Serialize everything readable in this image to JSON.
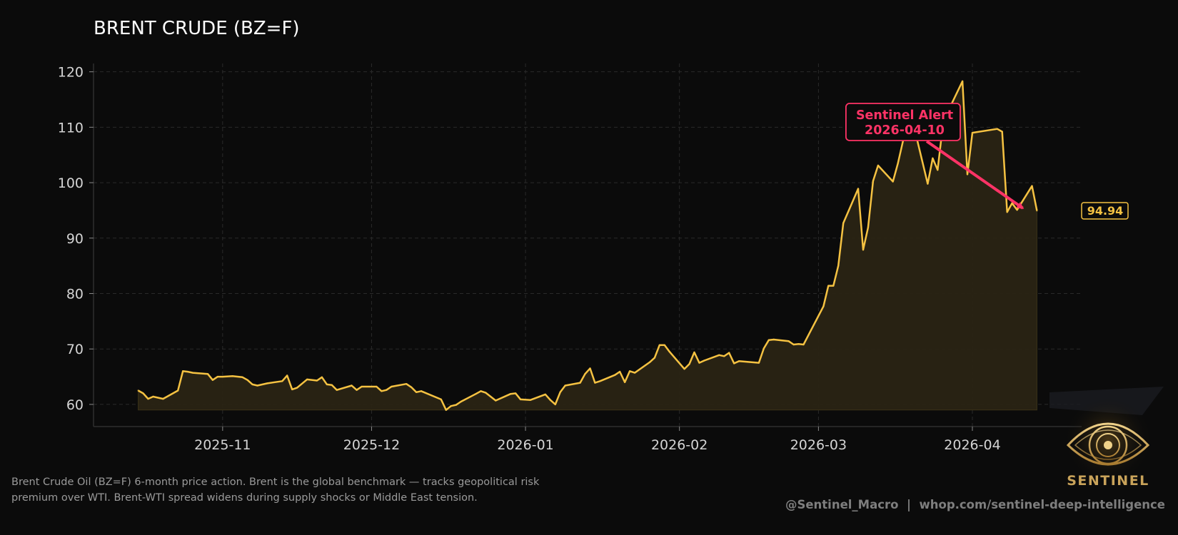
{
  "colors": {
    "background": "#0b0b0b",
    "line": "#f5c242",
    "fill": "#2a2414",
    "alert": "#ff3366",
    "grid": "#2a2a2a"
  },
  "chart_data": {
    "type": "area",
    "title": "BRENT CRUDE (BZ=F)",
    "xlabel": "",
    "ylabel": "",
    "ylim": [
      56,
      121.5
    ],
    "xlim": [
      "2025-10-06",
      "2026-04-23"
    ],
    "yticks": [
      60,
      70,
      80,
      90,
      100,
      110,
      120
    ],
    "xticks": [
      "2025-11",
      "2025-12",
      "2026-01",
      "2026-02",
      "2026-03",
      "2026-04"
    ],
    "grid": true,
    "fill_baseline": 59,
    "series": [
      {
        "x": [
          "2025-10-15",
          "2025-10-16",
          "2025-10-17",
          "2025-10-18",
          "2025-10-20",
          "2025-10-23",
          "2025-10-24",
          "2025-10-25",
          "2025-10-26",
          "2025-10-29",
          "2025-10-30",
          "2025-10-31",
          "2025-11-01",
          "2025-11-03",
          "2025-11-05",
          "2025-11-06",
          "2025-11-07",
          "2025-11-08",
          "2025-11-10",
          "2025-11-13",
          "2025-11-14",
          "2025-11-15",
          "2025-11-16",
          "2025-11-18",
          "2025-11-20",
          "2025-11-21",
          "2025-11-22",
          "2025-11-23",
          "2025-11-24",
          "2025-11-27",
          "2025-11-28",
          "2025-11-29",
          "2025-12-02",
          "2025-12-03",
          "2025-12-04",
          "2025-12-05",
          "2025-12-08",
          "2025-12-09",
          "2025-12-10",
          "2025-12-11",
          "2025-12-15",
          "2025-12-16",
          "2025-12-17",
          "2025-12-18",
          "2025-12-19",
          "2025-12-22",
          "2025-12-23",
          "2025-12-24",
          "2025-12-26",
          "2025-12-29",
          "2025-12-30",
          "2025-12-31",
          "2026-01-02",
          "2026-01-05",
          "2026-01-06",
          "2026-01-07",
          "2026-01-08",
          "2026-01-09",
          "2026-01-12",
          "2026-01-13",
          "2026-01-14",
          "2026-01-15",
          "2026-01-16",
          "2026-01-19",
          "2026-01-20",
          "2026-01-21",
          "2026-01-22",
          "2026-01-23",
          "2026-01-26",
          "2026-01-27",
          "2026-01-28",
          "2026-01-29",
          "2026-01-30",
          "2026-02-02",
          "2026-02-03",
          "2026-02-04",
          "2026-02-05",
          "2026-02-06",
          "2026-02-09",
          "2026-02-10",
          "2026-02-11",
          "2026-02-12",
          "2026-02-13",
          "2026-02-17",
          "2026-02-18",
          "2026-02-19",
          "2026-02-20",
          "2026-02-23",
          "2026-02-24",
          "2026-02-25",
          "2026-02-26",
          "2026-03-02",
          "2026-03-03",
          "2026-03-04",
          "2026-03-05",
          "2026-03-06",
          "2026-03-09",
          "2026-03-10",
          "2026-03-11",
          "2026-03-12",
          "2026-03-13",
          "2026-03-16",
          "2026-03-17",
          "2026-03-18",
          "2026-03-19",
          "2026-03-20",
          "2026-03-23",
          "2026-03-24",
          "2026-03-25",
          "2026-03-26",
          "2026-03-27",
          "2026-03-30",
          "2026-03-31",
          "2026-04-01",
          "2026-04-06",
          "2026-04-07",
          "2026-04-08",
          "2026-04-09",
          "2026-04-10",
          "2026-04-13",
          "2026-04-14"
        ],
        "values": [
          62.5,
          62.0,
          61.0,
          61.4,
          61.0,
          62.5,
          66.0,
          65.9,
          65.7,
          65.5,
          64.4,
          65.0,
          65.0,
          65.1,
          64.9,
          64.4,
          63.6,
          63.4,
          63.8,
          64.2,
          65.2,
          62.7,
          63.0,
          64.5,
          64.3,
          64.9,
          63.6,
          63.5,
          62.6,
          63.4,
          62.6,
          63.2,
          63.2,
          62.4,
          62.6,
          63.2,
          63.7,
          63.1,
          62.2,
          62.4,
          60.9,
          59.0,
          59.7,
          59.9,
          60.5,
          61.9,
          62.4,
          62.1,
          60.7,
          61.9,
          62.0,
          60.9,
          60.8,
          61.8,
          60.8,
          60.0,
          62.2,
          63.4,
          63.9,
          65.5,
          66.5,
          63.9,
          64.2,
          65.3,
          65.9,
          64.0,
          66.0,
          65.7,
          67.6,
          68.4,
          70.7,
          70.7,
          69.5,
          66.4,
          67.3,
          69.4,
          67.5,
          67.9,
          68.9,
          68.7,
          69.3,
          67.4,
          67.8,
          67.5,
          70.1,
          71.6,
          71.7,
          71.4,
          70.8,
          70.9,
          70.8,
          77.7,
          81.4,
          81.4,
          85.0,
          92.7,
          98.9,
          87.9,
          91.9,
          100.3,
          103.1,
          100.2,
          103.5,
          107.4,
          112.5,
          111.0,
          99.8,
          104.4,
          102.3,
          110.0,
          112.7,
          118.3,
          101.5,
          109.0,
          109.7,
          109.2,
          94.7,
          96.3,
          95.1,
          99.4,
          94.94
        ]
      }
    ],
    "last_value": "94.94",
    "annotation": {
      "line1": "Sentinel Alert",
      "line2": "2026-04-10",
      "target_x": "2026-04-10",
      "target_y": 95.4
    }
  },
  "footer": {
    "caption_line1": "Brent Crude Oil (BZ=F) 6-month price action. Brent is the global benchmark — tracks geopolitical risk",
    "caption_line2": "premium over WTI. Brent-WTI spread widens during supply shocks or Middle East tension.",
    "handle": "@Sentinel_Macro  |  whop.com/sentinel-deep-intelligence"
  },
  "logo": {
    "text": "SENTINEL",
    "icon": "eye-icon"
  }
}
